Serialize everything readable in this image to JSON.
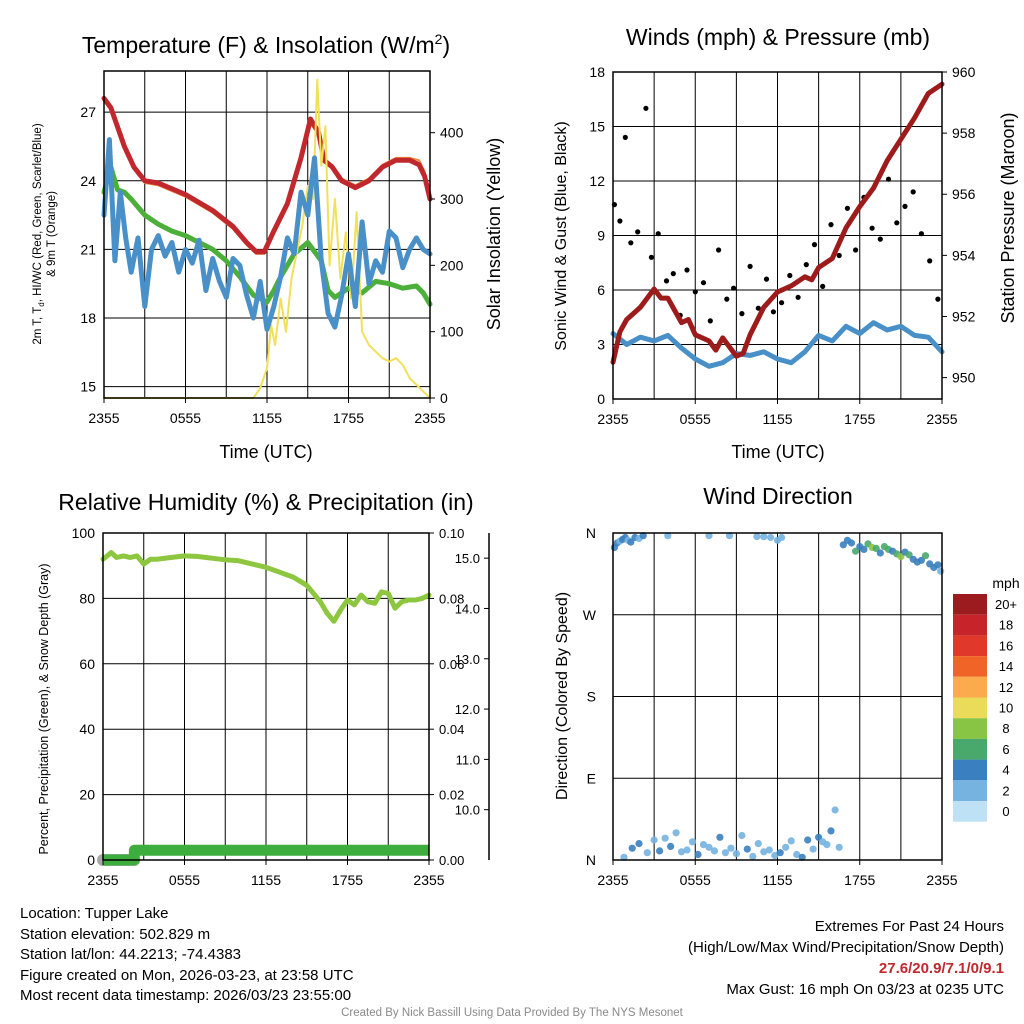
{
  "chart_data": [
    {
      "type": "line",
      "title": "Temperature (F) & Insolation (W/m",
      "title_sup": "2",
      "title_end": ")",
      "xlabel": "Time (UTC)",
      "ylabel": "2m T, T",
      "ylabel_sub": "d",
      "ylabel_rest": ", HI/WC (Red, Green, Scarlet/Blue)",
      "ylabel2": "& 9m T (Orange)",
      "y2label": "Solar Insolation (Yellow)",
      "x_ticks": [
        "2355",
        "0555",
        "1155",
        "1755",
        "2355"
      ],
      "ylim": [
        14.5,
        28.8
      ],
      "y_ticks": [
        15,
        18,
        21,
        24,
        27
      ],
      "y2lim": [
        0,
        493
      ],
      "y2_ticks": [
        0,
        100,
        200,
        300,
        400
      ],
      "series": [
        {
          "name": "2m T (Red)",
          "color": "#c0282d",
          "x": [
            0,
            0.5,
            1.5,
            2.2,
            3,
            4,
            6,
            8,
            9.5,
            10.5,
            11.2,
            11.8,
            12.5,
            13.5,
            14.5,
            15.2,
            15.8,
            16.2,
            16.8,
            17.5,
            18.5,
            19.5,
            20.5,
            21.5,
            22.5,
            23.2,
            23.6,
            24
          ],
          "values": [
            27.6,
            27.2,
            25.5,
            24.6,
            24.0,
            23.9,
            23.4,
            22.7,
            22.0,
            21.3,
            20.9,
            20.9,
            21.8,
            23.0,
            25.0,
            26.7,
            26.1,
            24.9,
            24.6,
            24.0,
            23.7,
            24.0,
            24.6,
            24.9,
            24.9,
            24.7,
            24.2,
            23.2
          ]
        },
        {
          "name": "9m T (Orange)",
          "color": "#ef8a3c",
          "x": [
            0,
            0.5,
            1.5,
            2.2,
            3,
            4,
            6,
            8,
            9.5,
            10.5,
            11.2,
            11.8,
            12.5,
            13.5,
            14.5,
            15.2,
            15.8,
            16.2,
            16.8,
            17.5,
            18.5,
            19.5,
            20.5,
            21.5,
            22.5,
            23.2,
            23.6,
            24
          ],
          "values": [
            27.5,
            27.1,
            25.4,
            24.5,
            23.9,
            23.8,
            23.3,
            22.6,
            21.9,
            21.2,
            20.8,
            20.8,
            21.7,
            22.9,
            24.9,
            26.5,
            26.0,
            24.8,
            24.7,
            24.1,
            23.8,
            24.1,
            24.7,
            25.0,
            25.0,
            24.9,
            24.4,
            23.4
          ]
        },
        {
          "name": "Td (Green)",
          "color": "#4caf3a",
          "x": [
            0,
            0.5,
            1,
            1.5,
            2,
            3,
            4,
            5,
            6,
            7,
            8,
            9,
            10,
            11,
            12,
            12.5,
            13,
            14,
            15,
            16,
            16.5,
            17,
            18,
            19,
            20,
            21,
            22,
            23,
            23.5,
            24
          ],
          "values": [
            23.5,
            24.6,
            23.6,
            23.5,
            23.2,
            22.5,
            22.1,
            21.8,
            21.6,
            21.3,
            21.0,
            20.5,
            19.8,
            19.0,
            18.7,
            19.2,
            19.8,
            20.8,
            21.3,
            20.5,
            19.2,
            18.9,
            19.3,
            19.1,
            19.6,
            19.5,
            19.3,
            19.4,
            19.1,
            18.6
          ]
        },
        {
          "name": "HI/WC (Blue)",
          "color": "#4a90c8",
          "x": [
            0,
            0.4,
            0.8,
            1.2,
            1.6,
            2,
            2.5,
            3,
            3.5,
            4,
            4.5,
            5,
            5.5,
            6,
            6.5,
            7,
            7.5,
            8,
            8.5,
            9,
            9.5,
            10,
            10.5,
            11,
            11.5,
            12,
            12.5,
            13,
            13.5,
            14,
            14.5,
            15,
            15.5,
            16,
            16.5,
            17,
            17.5,
            18,
            18.5,
            19,
            19.5,
            20,
            20.5,
            21,
            21.5,
            22,
            22.5,
            23,
            23.5,
            24
          ],
          "values": [
            22.5,
            25.8,
            20.5,
            23.5,
            21.5,
            20.0,
            21.5,
            18.5,
            21.0,
            21.6,
            20.7,
            21.3,
            20.0,
            21.0,
            20.4,
            21.4,
            19.2,
            20.6,
            19.6,
            18.9,
            20.6,
            20.3,
            19.0,
            18.0,
            19.6,
            17.5,
            18.5,
            19.8,
            21.5,
            20.8,
            23.5,
            22.5,
            25.0,
            20.5,
            18.2,
            17.6,
            19.0,
            20.8,
            18.5,
            22.2,
            19.5,
            20.5,
            20.0,
            21.8,
            21.5,
            20.2,
            21.0,
            21.5,
            21.0,
            20.8
          ]
        },
        {
          "name": "Solar Insolation (Yellow)",
          "color": "#f1e05a",
          "axis": "y2",
          "x": [
            0,
            4,
            8,
            11,
            11.5,
            12,
            12.3,
            12.6,
            13,
            13.4,
            13.8,
            14.2,
            14.6,
            15,
            15.4,
            15.7,
            16,
            16.3,
            16.6,
            17,
            17.4,
            17.8,
            18.2,
            18.6,
            19,
            19.5,
            20,
            20.5,
            21,
            21.5,
            22,
            22.5,
            23,
            23.5,
            24
          ],
          "values": [
            0,
            0,
            0,
            0,
            15,
            45,
            110,
            80,
            150,
            100,
            180,
            220,
            260,
            320,
            300,
            480,
            350,
            410,
            200,
            300,
            180,
            250,
            150,
            280,
            100,
            80,
            70,
            60,
            55,
            60,
            50,
            30,
            20,
            10,
            0
          ]
        }
      ]
    },
    {
      "type": "line",
      "title": "Winds (mph) & Pressure (mb)",
      "xlabel": "Time (UTC)",
      "ylabel": "Sonic Wind & Gust (Blue, Black)",
      "y2label": "Station Pressure (Maroon)",
      "x_ticks": [
        "2355",
        "0555",
        "1155",
        "1755",
        "2355"
      ],
      "ylim": [
        0,
        18
      ],
      "y_ticks": [
        0,
        3,
        6,
        9,
        12,
        15,
        18
      ],
      "y2lim": [
        949.3,
        960
      ],
      "y2_ticks": [
        950,
        952,
        954,
        956,
        958,
        960
      ],
      "series": [
        {
          "name": "Sonic Wind (Blue)",
          "color": "#4a90c8",
          "x": [
            0,
            1,
            2,
            3,
            4,
            5,
            6,
            7,
            8,
            9,
            10,
            11,
            12,
            13,
            14,
            15,
            16,
            17,
            18,
            19,
            20,
            21,
            22,
            23,
            24
          ],
          "values": [
            3.6,
            3.0,
            3.4,
            3.2,
            3.5,
            2.8,
            2.2,
            1.8,
            2.0,
            2.5,
            2.4,
            2.6,
            2.2,
            2.0,
            2.6,
            3.5,
            3.2,
            4.0,
            3.6,
            4.2,
            3.8,
            4.0,
            3.5,
            3.4,
            2.6
          ]
        },
        {
          "name": "Gust (Black)",
          "color": "#000000",
          "marker": "dot",
          "x": [
            0.1,
            0.5,
            0.9,
            1.3,
            1.8,
            2.4,
            2.8,
            3.3,
            3.9,
            4.4,
            4.9,
            5.4,
            6.0,
            6.6,
            7.1,
            7.7,
            8.3,
            8.8,
            9.4,
            10.0,
            10.6,
            11.2,
            11.7,
            12.3,
            12.9,
            13.5,
            14.1,
            14.7,
            15.3,
            15.9,
            16.5,
            17.1,
            17.7,
            18.3,
            18.9,
            19.5,
            20.1,
            20.7,
            21.3,
            21.9,
            22.5,
            23.1,
            23.7
          ],
          "values": [
            10.7,
            9.8,
            14.4,
            8.6,
            9.2,
            16.0,
            7.8,
            9.1,
            6.5,
            6.9,
            4.6,
            7.1,
            5.9,
            6.4,
            4.3,
            8.2,
            5.5,
            6.1,
            4.7,
            7.3,
            5.0,
            6.6,
            4.8,
            5.3,
            6.8,
            5.6,
            7.4,
            8.5,
            6.2,
            9.6,
            7.9,
            10.5,
            8.2,
            11.1,
            9.4,
            8.8,
            12.1,
            9.7,
            10.6,
            11.4,
            9.1,
            7.6,
            5.5
          ]
        },
        {
          "name": "Station Pressure (Maroon)",
          "color": "#9e1b1b",
          "axis": "y2",
          "x": [
            0,
            0.5,
            1,
            2,
            3,
            3.5,
            4,
            5,
            5.5,
            6,
            7,
            7.5,
            8,
            9,
            9.5,
            10,
            11,
            12,
            13,
            14,
            14.5,
            15,
            16,
            17,
            18,
            19,
            20,
            21,
            22,
            23,
            24
          ],
          "values": [
            950.5,
            951.5,
            951.9,
            952.3,
            952.9,
            952.6,
            952.6,
            951.8,
            951.9,
            951.4,
            951.2,
            950.9,
            951.3,
            950.7,
            950.8,
            951.4,
            952.3,
            952.8,
            953.0,
            953.3,
            953.2,
            953.6,
            953.9,
            954.9,
            955.6,
            956.2,
            957.1,
            957.8,
            958.5,
            959.3,
            959.6
          ]
        }
      ]
    },
    {
      "type": "line",
      "title": "Relative Humidity (%) & Precipitation (in)",
      "ylabel": "Percent, Precipitation (Green), & Snow Depth (Gray)",
      "x_ticks": [
        "2355",
        "0555",
        "1155",
        "1755",
        "2355"
      ],
      "ylim": [
        0,
        100
      ],
      "y_ticks": [
        0,
        20,
        40,
        60,
        80,
        100
      ],
      "y2lim": [
        0,
        0.1
      ],
      "y2_ticks": [
        "0.00",
        "0.02",
        "0.04",
        "0.06",
        "0.08",
        "0.10"
      ],
      "y3lim": [
        9,
        15.5
      ],
      "y3_ticks": [
        "10.0",
        "11.0",
        "12.0",
        "13.0",
        "14.0",
        "15.0"
      ],
      "series": [
        {
          "name": "Relative Humidity (Green)",
          "color": "#8dc63f",
          "x": [
            0,
            0.3,
            0.6,
            1,
            1.5,
            2,
            2.5,
            3,
            3.5,
            4,
            5,
            6,
            7,
            8,
            9,
            10,
            11,
            12,
            13,
            14,
            15,
            16,
            16.5,
            17,
            17.5,
            18,
            18.5,
            19,
            19.5,
            20,
            20.5,
            21,
            21.5,
            22,
            22.5,
            23,
            23.5,
            24
          ],
          "values": [
            92,
            93,
            94,
            92.5,
            93,
            92.5,
            93,
            90.5,
            92,
            92,
            92.5,
            93,
            92.8,
            92.3,
            91.8,
            91.5,
            90.5,
            89.5,
            88,
            86.5,
            84,
            79,
            75.5,
            73,
            76.5,
            79.5,
            78,
            81,
            79,
            78.5,
            82,
            81.5,
            77,
            79,
            79.5,
            79.5,
            80,
            81
          ]
        },
        {
          "name": "Precipitation (Green)",
          "color": "#3dae3d",
          "x": [
            0,
            2.3,
            2.31,
            24
          ],
          "values": [
            0,
            0,
            0.003,
            0.003
          ]
        },
        {
          "name": "Snow Depth (Gray)",
          "color": "#a8a8a8",
          "axis": "y3",
          "x": [
            0,
            2.3
          ],
          "values": [
            9.0,
            9.0
          ]
        }
      ]
    },
    {
      "type": "scatter",
      "title": "Wind Direction",
      "ylabel": "Direction (Colored By Speed)",
      "x_ticks": [
        "2355",
        "0555",
        "1155",
        "1755",
        "2355"
      ],
      "y_ticks": [
        "N",
        "E",
        "S",
        "W",
        "N"
      ],
      "ylim": [
        0,
        360
      ],
      "legend_title": "mph",
      "legend_labels": [
        "20+",
        "18",
        "16",
        "14",
        "12",
        "10",
        "8",
        "6",
        "4",
        "2",
        "0"
      ],
      "legend_colors": [
        "#9b1b1e",
        "#c7232a",
        "#e0392b",
        "#f06428",
        "#fbab4b",
        "#eadb58",
        "#89c544",
        "#49a86b",
        "#3a7fbf",
        "#76b3e0",
        "#bfe1f6"
      ],
      "points": {
        "x": [
          0.1,
          0.3,
          0.5,
          0.7,
          0.9,
          1.1,
          1.3,
          1.6,
          1.9,
          2.2,
          4.0,
          7.0,
          8.5,
          10.5,
          11,
          11.5,
          12,
          12.3,
          0.8,
          1.4,
          1.9,
          2.5,
          3.0,
          3.4,
          3.8,
          4.2,
          4.6,
          5.0,
          5.4,
          5.8,
          6.2,
          6.6,
          7.0,
          7.4,
          7.8,
          8.2,
          8.6,
          9.0,
          9.4,
          9.8,
          10.2,
          10.6,
          11.0,
          11.4,
          11.8,
          12.2,
          12.6,
          13.0,
          13.4,
          13.8,
          14.2,
          14.6,
          15.0,
          15.3,
          15.6,
          15.9,
          16.2,
          16.5,
          16.8,
          17.1,
          17.4,
          17.7,
          18.0,
          18.3,
          18.6,
          18.9,
          19.2,
          19.5,
          19.8,
          20.1,
          20.4,
          20.7,
          21.0,
          21.3,
          21.6,
          21.9,
          22.2,
          22.5,
          22.8,
          23.1,
          23.4,
          23.7,
          23.9
        ],
        "values": [
          344,
          349,
          351,
          353,
          355,
          352,
          350,
          355,
          354,
          357,
          357,
          357,
          357,
          356,
          356,
          355,
          352,
          355,
          3,
          13,
          18,
          8,
          22,
          10,
          24,
          15,
          30,
          9,
          11,
          20,
          6,
          17,
          14,
          10,
          25,
          8,
          13,
          7,
          27,
          12,
          4,
          18,
          9,
          11,
          5,
          8,
          14,
          21,
          6,
          3,
          22,
          12,
          25,
          20,
          17,
          32,
          55,
          14,
          347,
          352,
          349,
          340,
          345,
          342,
          348,
          344,
          343,
          338,
          345,
          342,
          340,
          337,
          334,
          339,
          336,
          331,
          328,
          330,
          335,
          326,
          322,
          325,
          318
        ],
        "speeds": [
          4,
          3,
          2,
          3,
          3,
          2,
          4,
          3,
          2,
          3,
          2,
          2,
          2,
          2,
          2,
          1,
          2,
          2,
          2,
          3,
          4,
          2,
          1,
          3,
          2,
          3,
          2,
          1,
          2,
          2,
          3,
          2,
          1,
          2,
          3,
          2,
          1,
          2,
          2,
          3,
          1,
          2,
          2,
          1,
          2,
          3,
          2,
          1,
          2,
          3,
          4,
          2,
          3,
          2,
          1,
          3,
          2,
          2,
          4,
          4,
          4,
          5,
          3,
          4,
          6,
          7,
          5,
          4,
          6,
          5,
          4,
          6,
          7,
          4,
          5,
          4,
          4,
          3,
          5,
          3,
          4,
          3,
          2
        ]
      }
    }
  ],
  "footer": {
    "location": "Location: Tupper Lake",
    "elevation": "Station elevation: 502.829 m",
    "latlon": "Station lat/lon: 44.2213; -74.4383",
    "created": "Figure created on Mon, 2026-03-23, at 23:58 UTC",
    "recent": "Most recent data timestamp: 2026/03/23 23:55:00",
    "extremes_title": "Extremes For Past 24 Hours",
    "extremes_subtitle": "(High/Low/Max Wind/Precipitation/Snow Depth)",
    "extremes_values": "27.6/20.9/7.1/0/9.1",
    "max_gust": "Max Gust: 16 mph On 03/23 at 0235 UTC",
    "credit": "Created By Nick Bassill Using Data Provided By The NYS Mesonet"
  }
}
